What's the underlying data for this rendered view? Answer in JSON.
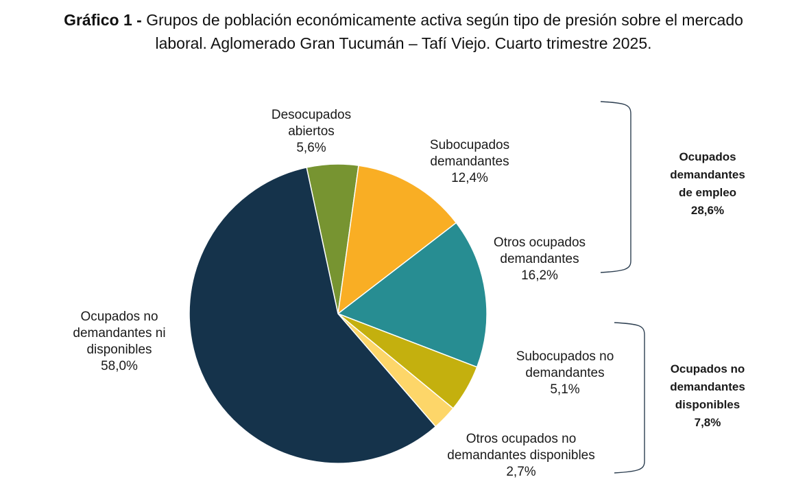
{
  "title": {
    "prefix": "Gráfico 1 -",
    "text": "Grupos de población económicamente activa según tipo de presión sobre el mercado laboral. Aglomerado Gran Tucumán – Tafí Viejo. Cuarto trimestre 2025."
  },
  "chart_data": {
    "type": "pie",
    "slices": [
      {
        "label_lines": [
          "Desocupados",
          "abiertos"
        ],
        "value_label": "5,6%",
        "value": 5.6,
        "color": "#779431"
      },
      {
        "label_lines": [
          "Subocupados",
          "demandantes"
        ],
        "value_label": "12,4%",
        "value": 12.4,
        "color": "#F9AE24"
      },
      {
        "label_lines": [
          "Otros ocupados",
          "demandantes"
        ],
        "value_label": "16,2%",
        "value": 16.2,
        "color": "#278D92"
      },
      {
        "label_lines": [
          "Subocupados no",
          "demandantes"
        ],
        "value_label": "5,1%",
        "value": 5.1,
        "color": "#C4B00E"
      },
      {
        "label_lines": [
          "Otros ocupados no",
          "demandantes disponibles"
        ],
        "value_label": "2,7%",
        "value": 2.7,
        "color": "#FDD669"
      },
      {
        "label_lines": [
          "Ocupados no",
          "demandantes ni",
          "disponibles"
        ],
        "value_label": "58,0%",
        "value": 58.0,
        "color": "#15334B"
      }
    ],
    "groups": [
      {
        "label_lines": [
          "Ocupados",
          "demandantes",
          "de empleo"
        ],
        "value_label": "28,6%",
        "value": 28.6
      },
      {
        "label_lines": [
          "Ocupados no",
          "demandantes",
          "disponibles"
        ],
        "value_label": "7,8%",
        "value": 7.8
      }
    ]
  }
}
